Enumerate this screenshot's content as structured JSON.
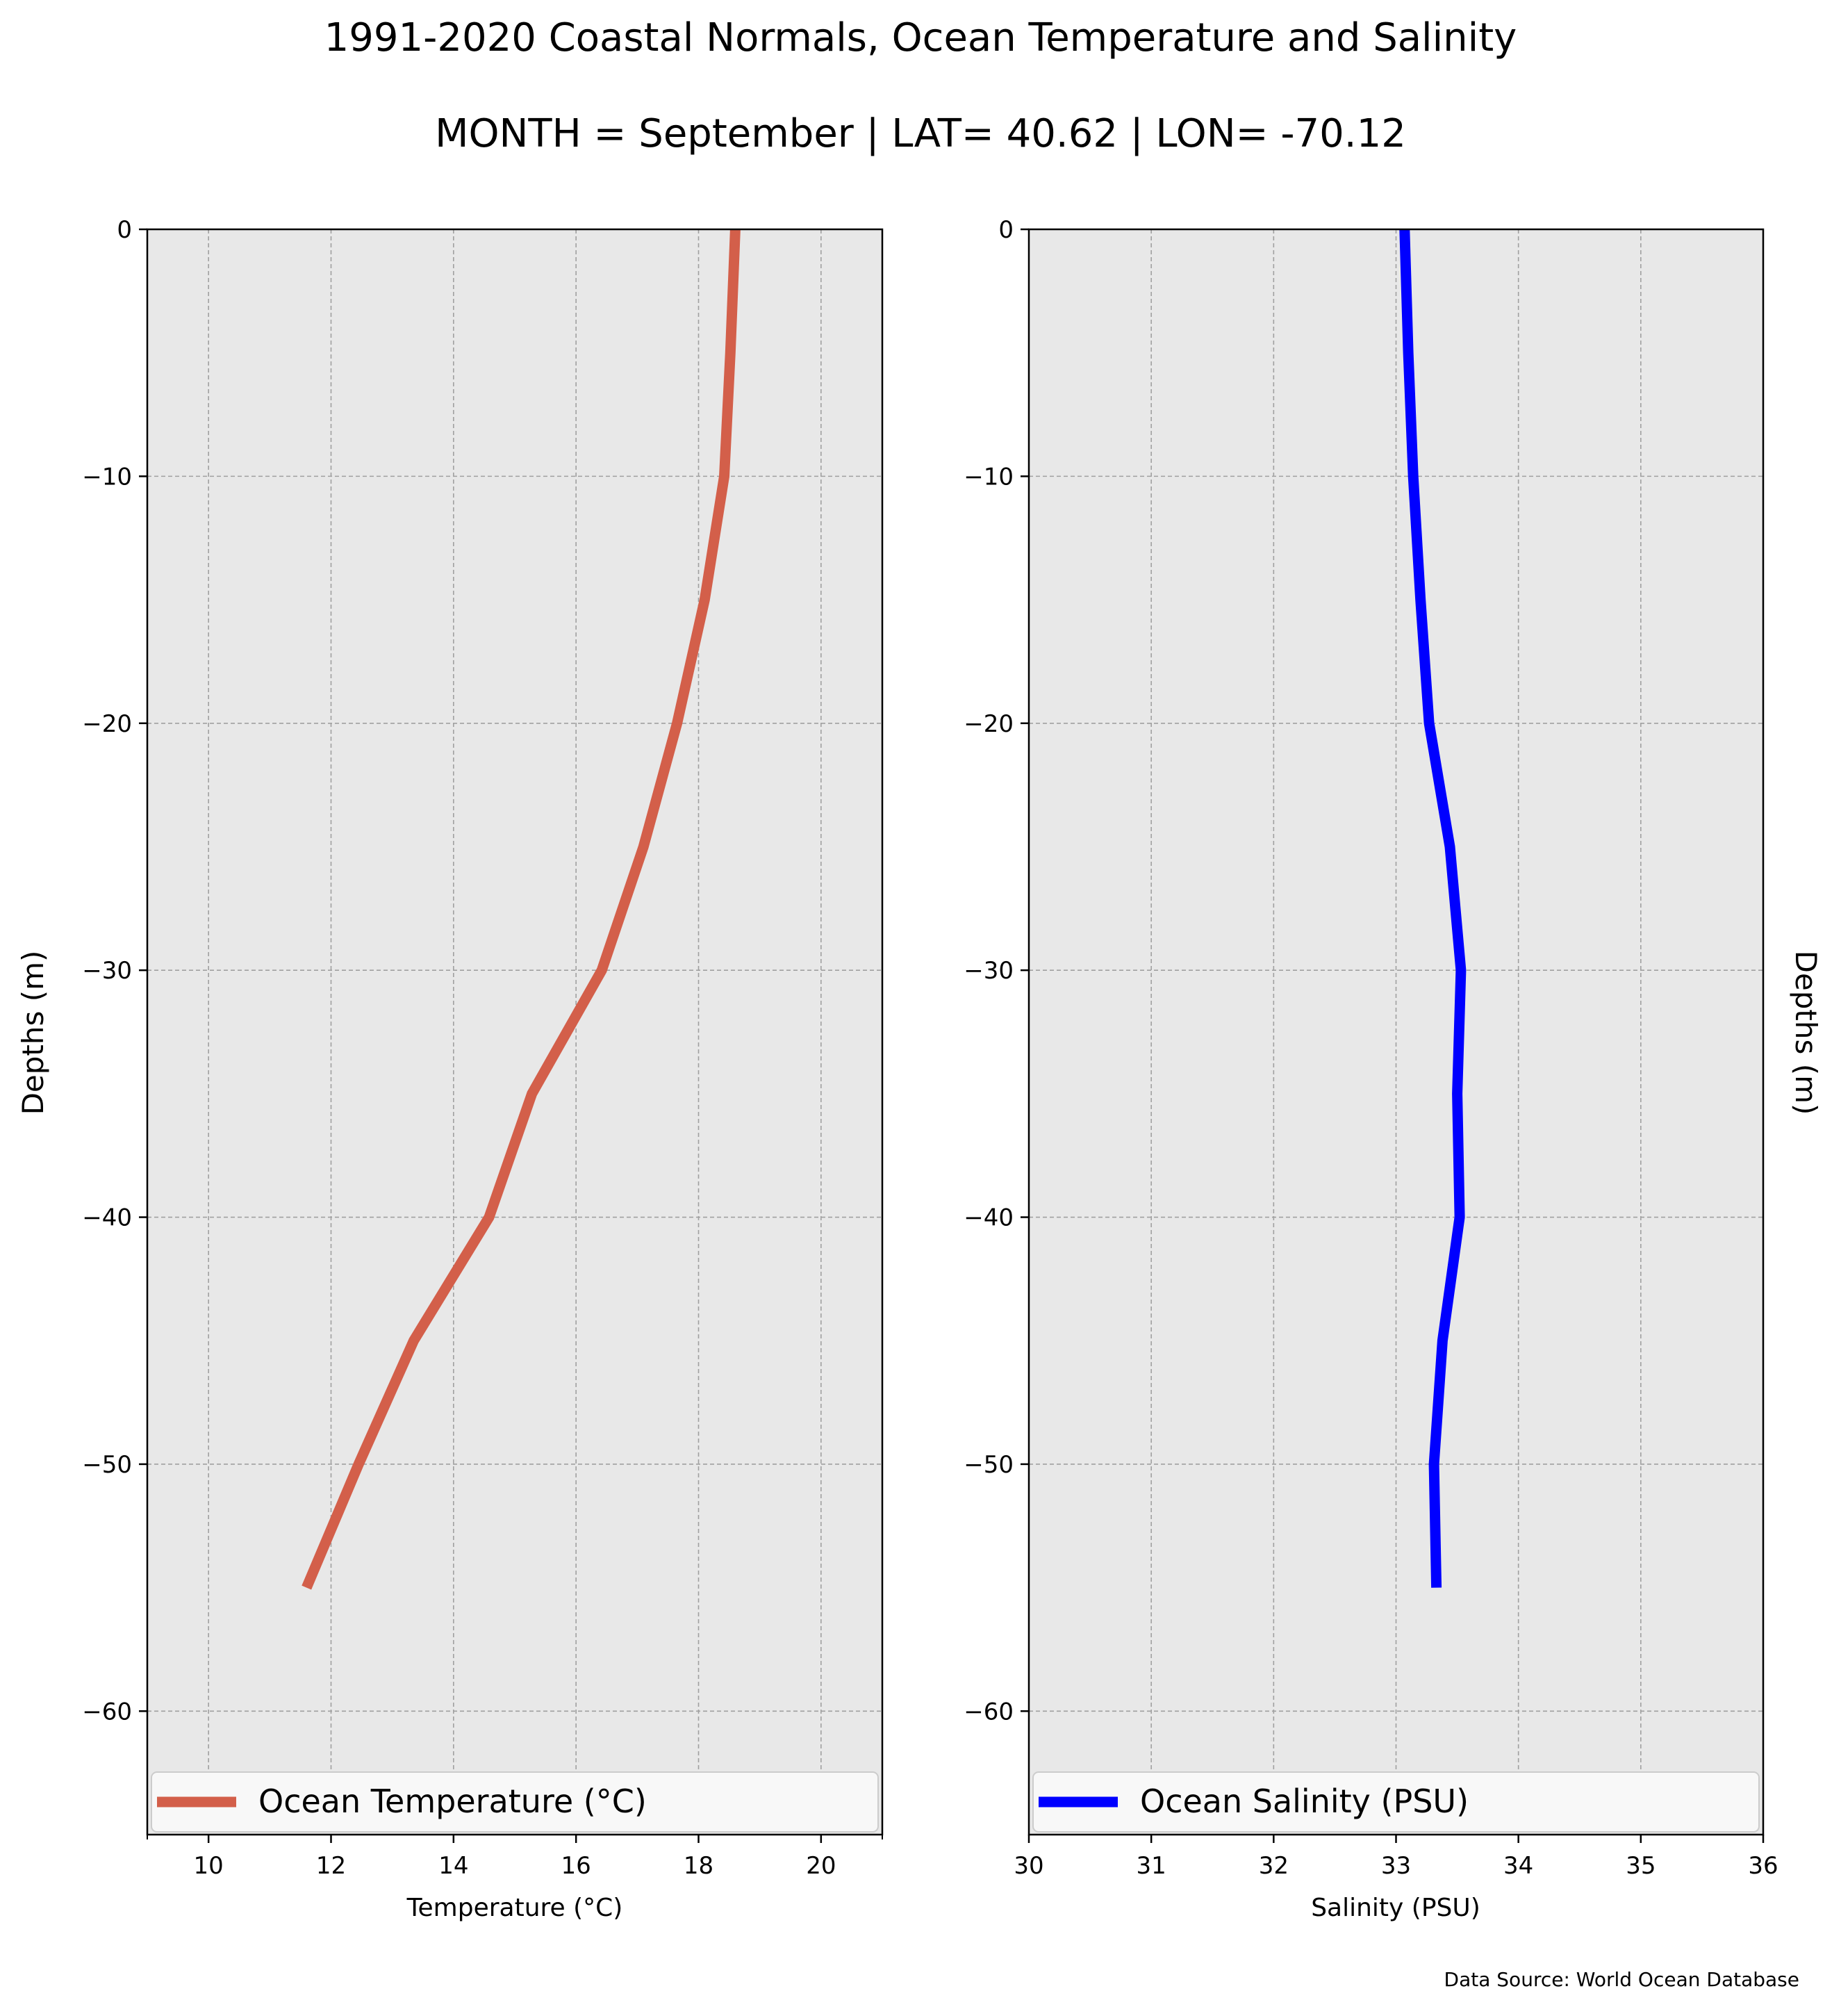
{
  "title": "1991-2020 Coastal Normals, Ocean Temperature and Salinity",
  "subtitle": "MONTH = September | LAT= 40.62 | LON= -70.12",
  "source": "Data Source: World Ocean Database",
  "colors": {
    "plot_bg": "#e8e8e8",
    "grid": "#a0a0a0",
    "temperature": "#d35f4a",
    "salinity": "#0000ff"
  },
  "chart_data": [
    {
      "type": "line",
      "panel": "left",
      "xlabel": "Temperature ($^\\circ$C)",
      "xlabel_display": "Temperature (°C)",
      "ylabel": "Depths (m)",
      "xlim": [
        9,
        21
      ],
      "ylim": [
        -65,
        0
      ],
      "xticks": [
        10,
        12,
        14,
        16,
        18,
        20
      ],
      "yticks": [
        0,
        -10,
        -20,
        -30,
        -40,
        -50,
        -60
      ],
      "ytick_labels": [
        "0",
        "−10",
        "−20",
        "−30",
        "−40",
        "−50",
        "−60"
      ],
      "grid": true,
      "legend_position": "bottom",
      "series": [
        {
          "name": "Ocean Temperature (°C)",
          "x": [
            18.6,
            18.52,
            18.42,
            18.1,
            17.65,
            17.1,
            16.42,
            15.28,
            14.58,
            13.35,
            12.45,
            11.6
          ],
          "y": [
            0,
            -5,
            -10,
            -15,
            -20,
            -25,
            -30,
            -35,
            -40,
            -45,
            -50,
            -55
          ]
        }
      ]
    },
    {
      "type": "line",
      "panel": "right",
      "xlabel": "Salinity (PSU)",
      "ylabel": "Depths (m)",
      "xlim": [
        30,
        36
      ],
      "ylim": [
        -65,
        0
      ],
      "xticks": [
        30,
        31,
        32,
        33,
        34,
        35,
        36
      ],
      "yticks": [
        0,
        -10,
        -20,
        -30,
        -40,
        -50,
        -60
      ],
      "ytick_labels": [
        "0",
        "−10",
        "−20",
        "−30",
        "−40",
        "−50",
        "−60"
      ],
      "grid": true,
      "legend_position": "bottom",
      "series": [
        {
          "name": "Ocean Salinity (PSU)",
          "x": [
            33.07,
            33.1,
            33.14,
            33.2,
            33.27,
            33.44,
            33.53,
            33.5,
            33.52,
            33.38,
            33.31,
            33.33
          ],
          "y": [
            0,
            -5,
            -10,
            -15,
            -20,
            -25,
            -30,
            -35,
            -40,
            -45,
            -50,
            -55
          ]
        }
      ]
    }
  ]
}
